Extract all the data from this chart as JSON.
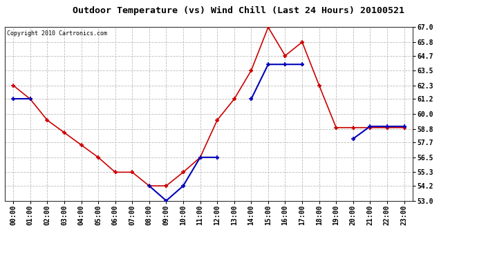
{
  "title": "Outdoor Temperature (vs) Wind Chill (Last 24 Hours) 20100521",
  "copyright": "Copyright 2010 Cartronics.com",
  "hours": [
    "00:00",
    "01:00",
    "02:00",
    "03:00",
    "04:00",
    "05:00",
    "06:00",
    "07:00",
    "08:00",
    "09:00",
    "10:00",
    "11:00",
    "12:00",
    "13:00",
    "14:00",
    "15:00",
    "16:00",
    "17:00",
    "18:00",
    "19:00",
    "20:00",
    "21:00",
    "22:00",
    "23:00"
  ],
  "temp": [
    62.3,
    61.2,
    59.5,
    58.5,
    57.5,
    56.5,
    55.3,
    55.3,
    54.2,
    54.2,
    55.3,
    56.5,
    59.5,
    61.2,
    63.5,
    67.0,
    64.7,
    65.8,
    62.3,
    58.9,
    58.9,
    58.9,
    58.9,
    58.9
  ],
  "wind_chill": [
    61.2,
    61.2,
    null,
    null,
    null,
    null,
    null,
    null,
    54.2,
    53.0,
    54.2,
    56.5,
    56.5,
    null,
    61.2,
    64.0,
    64.0,
    64.0,
    null,
    null,
    58.0,
    59.0,
    59.0,
    59.0
  ],
  "temp_color": "#cc0000",
  "wind_chill_color": "#0000bb",
  "bg_color": "#ffffff",
  "plot_bg_color": "#ffffff",
  "grid_color": "#bbbbbb",
  "ylim_min": 53.0,
  "ylim_max": 67.0,
  "yticks": [
    53.0,
    54.2,
    55.3,
    56.5,
    57.7,
    58.8,
    60.0,
    61.2,
    62.3,
    63.5,
    64.7,
    65.8,
    67.0
  ],
  "title_fontsize": 9.5,
  "copyright_fontsize": 6,
  "tick_fontsize": 7,
  "marker_size": 4,
  "line_width": 1.2
}
